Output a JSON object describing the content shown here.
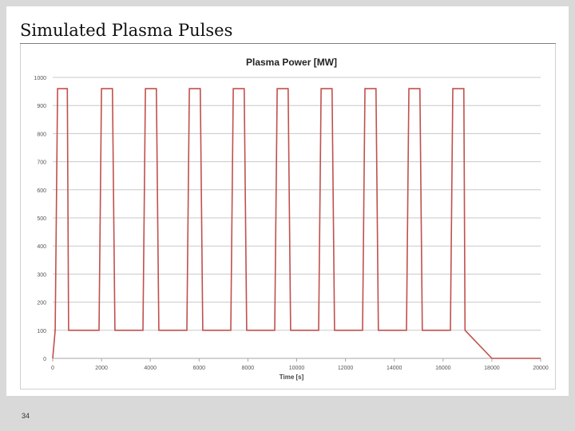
{
  "slide": {
    "title": "Simulated Plasma Pulses",
    "page_number": "34"
  },
  "colors": {
    "series": "#c0504d",
    "grid": "#c8c8c8",
    "axis_text": "#555555",
    "title_text": "#222222"
  },
  "chart_data": {
    "type": "line",
    "title": "Plasma Power [MW]",
    "xlabel": "Time [s]",
    "ylabel": "",
    "xlim": [
      0,
      20000
    ],
    "ylim": [
      0,
      1000
    ],
    "x_ticks": [
      0,
      2000,
      4000,
      6000,
      8000,
      10000,
      12000,
      14000,
      16000,
      18000,
      20000
    ],
    "x_tick_labels": [
      "0",
      "2000",
      "4000",
      "6000",
      "8000",
      "10000",
      "12000",
      "14000",
      "16000",
      "18000",
      "20000"
    ],
    "y_ticks": [
      0,
      100,
      200,
      300,
      400,
      500,
      600,
      700,
      800,
      900,
      1000
    ],
    "y_tick_labels": [
      "0",
      "100",
      "200",
      "300",
      "400",
      "500",
      "600",
      "700",
      "800",
      "900",
      "1000"
    ],
    "grid": true,
    "legend": "none",
    "series": [
      {
        "x": [
          0,
          100,
          200,
          250,
          600,
          650,
          1900,
          2000,
          2450,
          2550,
          3700,
          3800,
          4250,
          4350,
          5500,
          5600,
          6050,
          6150,
          7300,
          7400,
          7850,
          7950,
          9100,
          9200,
          9650,
          9750,
          10900,
          11000,
          11450,
          11550,
          12700,
          12800,
          13250,
          13350,
          14500,
          14600,
          15050,
          15150,
          16300,
          16400,
          16850,
          16900,
          18000,
          20000
        ],
        "y": [
          0,
          100,
          960,
          960,
          960,
          100,
          100,
          960,
          960,
          100,
          100,
          960,
          960,
          100,
          100,
          960,
          960,
          100,
          100,
          960,
          960,
          100,
          100,
          960,
          960,
          100,
          100,
          960,
          960,
          100,
          100,
          960,
          960,
          100,
          100,
          960,
          960,
          100,
          100,
          960,
          960,
          100,
          0,
          0
        ]
      }
    ]
  }
}
